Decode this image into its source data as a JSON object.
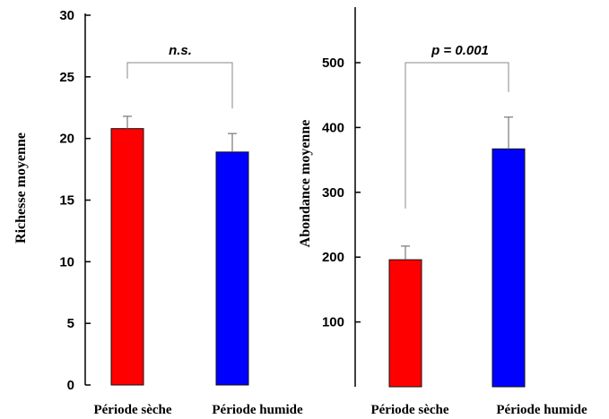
{
  "chart_data": [
    {
      "type": "bar",
      "categories": [
        "Période sèche",
        "Période humide"
      ],
      "values": [
        20.8,
        18.9
      ],
      "errors": [
        1.0,
        1.5
      ],
      "ylabel": "Richesse  moyenne",
      "ylim": [
        0,
        30
      ],
      "yticks": [
        0,
        5,
        10,
        15,
        20,
        25,
        30
      ],
      "significance": "n.s.",
      "colors": [
        "#ff0000",
        "#0000ff"
      ]
    },
    {
      "type": "bar",
      "categories": [
        "Période sèche",
        "Période humide"
      ],
      "values": [
        196,
        367
      ],
      "errors": [
        21,
        49
      ],
      "ylabel": "Abondance  moyenne",
      "ylim": [
        0,
        580
      ],
      "yticks": [
        100,
        200,
        300,
        400,
        500
      ],
      "significance": "p = 0.001",
      "colors": [
        "#ff0000",
        "#0000ff"
      ]
    }
  ]
}
